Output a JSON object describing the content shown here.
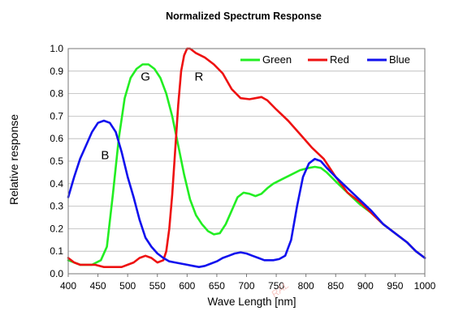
{
  "chart_data": {
    "type": "line",
    "title": "Normalized Spectrum Response",
    "xlabel": "Wave Length [nm]",
    "ylabel": "Relative response",
    "xlim": [
      400,
      1000
    ],
    "ylim": [
      0.0,
      1.0
    ],
    "x_ticks": [
      400,
      450,
      500,
      550,
      600,
      650,
      700,
      750,
      800,
      850,
      900,
      950,
      1000
    ],
    "x_tick_labels": [
      "400",
      "450",
      "500",
      "550",
      "600",
      "650",
      "700",
      "750",
      "800",
      "850",
      "900",
      "950",
      "1000"
    ],
    "y_ticks": [
      0.0,
      0.1,
      0.2,
      0.3,
      0.4,
      0.5,
      0.6,
      0.7,
      0.8,
      0.9,
      1.0
    ],
    "y_tick_labels": [
      "0.0",
      "0.1",
      "0.2",
      "0.3",
      "0.4",
      "0.5",
      "0.6",
      "0.7",
      "0.8",
      "0.9",
      "1.0"
    ],
    "grid": "horizontal",
    "legend_position": "top-right",
    "series": [
      {
        "name": "Green",
        "color": "#22ee22",
        "points": [
          [
            400,
            0.06
          ],
          [
            420,
            0.04
          ],
          [
            440,
            0.04
          ],
          [
            455,
            0.06
          ],
          [
            465,
            0.12
          ],
          [
            475,
            0.35
          ],
          [
            485,
            0.6
          ],
          [
            495,
            0.78
          ],
          [
            505,
            0.87
          ],
          [
            515,
            0.91
          ],
          [
            525,
            0.93
          ],
          [
            535,
            0.93
          ],
          [
            545,
            0.91
          ],
          [
            555,
            0.87
          ],
          [
            565,
            0.8
          ],
          [
            575,
            0.7
          ],
          [
            585,
            0.57
          ],
          [
            595,
            0.44
          ],
          [
            605,
            0.33
          ],
          [
            615,
            0.26
          ],
          [
            625,
            0.22
          ],
          [
            635,
            0.19
          ],
          [
            645,
            0.175
          ],
          [
            655,
            0.18
          ],
          [
            665,
            0.22
          ],
          [
            675,
            0.28
          ],
          [
            685,
            0.34
          ],
          [
            695,
            0.36
          ],
          [
            705,
            0.355
          ],
          [
            715,
            0.345
          ],
          [
            725,
            0.355
          ],
          [
            735,
            0.38
          ],
          [
            745,
            0.4
          ],
          [
            760,
            0.42
          ],
          [
            775,
            0.44
          ],
          [
            790,
            0.46
          ],
          [
            805,
            0.47
          ],
          [
            815,
            0.475
          ],
          [
            825,
            0.47
          ],
          [
            835,
            0.45
          ],
          [
            850,
            0.41
          ],
          [
            870,
            0.36
          ],
          [
            890,
            0.31
          ],
          [
            910,
            0.27
          ],
          [
            930,
            0.22
          ],
          [
            950,
            0.18
          ],
          [
            970,
            0.14
          ],
          [
            985,
            0.1
          ],
          [
            1000,
            0.07
          ]
        ]
      },
      {
        "name": "Red",
        "color": "#ee1111",
        "points": [
          [
            400,
            0.07
          ],
          [
            410,
            0.05
          ],
          [
            420,
            0.04
          ],
          [
            430,
            0.04
          ],
          [
            445,
            0.04
          ],
          [
            460,
            0.03
          ],
          [
            475,
            0.03
          ],
          [
            490,
            0.03
          ],
          [
            500,
            0.04
          ],
          [
            510,
            0.05
          ],
          [
            520,
            0.07
          ],
          [
            530,
            0.08
          ],
          [
            540,
            0.07
          ],
          [
            550,
            0.05
          ],
          [
            560,
            0.06
          ],
          [
            565,
            0.1
          ],
          [
            570,
            0.2
          ],
          [
            575,
            0.35
          ],
          [
            580,
            0.55
          ],
          [
            585,
            0.75
          ],
          [
            590,
            0.9
          ],
          [
            595,
            0.97
          ],
          [
            600,
            1.0
          ],
          [
            605,
            1.0
          ],
          [
            615,
            0.98
          ],
          [
            630,
            0.96
          ],
          [
            645,
            0.93
          ],
          [
            660,
            0.89
          ],
          [
            675,
            0.82
          ],
          [
            690,
            0.78
          ],
          [
            705,
            0.775
          ],
          [
            715,
            0.78
          ],
          [
            725,
            0.785
          ],
          [
            735,
            0.77
          ],
          [
            750,
            0.73
          ],
          [
            770,
            0.68
          ],
          [
            790,
            0.62
          ],
          [
            810,
            0.56
          ],
          [
            830,
            0.51
          ],
          [
            850,
            0.43
          ],
          [
            870,
            0.36
          ],
          [
            890,
            0.32
          ],
          [
            910,
            0.27
          ],
          [
            930,
            0.22
          ],
          [
            950,
            0.18
          ],
          [
            970,
            0.14
          ],
          [
            985,
            0.1
          ],
          [
            1000,
            0.07
          ]
        ]
      },
      {
        "name": "Blue",
        "color": "#1111ee",
        "points": [
          [
            400,
            0.34
          ],
          [
            410,
            0.43
          ],
          [
            420,
            0.51
          ],
          [
            430,
            0.57
          ],
          [
            440,
            0.63
          ],
          [
            450,
            0.67
          ],
          [
            460,
            0.68
          ],
          [
            470,
            0.67
          ],
          [
            480,
            0.63
          ],
          [
            490,
            0.54
          ],
          [
            500,
            0.43
          ],
          [
            510,
            0.34
          ],
          [
            520,
            0.24
          ],
          [
            530,
            0.16
          ],
          [
            540,
            0.12
          ],
          [
            550,
            0.09
          ],
          [
            560,
            0.07
          ],
          [
            570,
            0.055
          ],
          [
            580,
            0.05
          ],
          [
            590,
            0.045
          ],
          [
            600,
            0.04
          ],
          [
            610,
            0.035
          ],
          [
            620,
            0.03
          ],
          [
            630,
            0.035
          ],
          [
            640,
            0.045
          ],
          [
            650,
            0.055
          ],
          [
            660,
            0.07
          ],
          [
            670,
            0.08
          ],
          [
            680,
            0.09
          ],
          [
            690,
            0.095
          ],
          [
            700,
            0.09
          ],
          [
            710,
            0.08
          ],
          [
            720,
            0.07
          ],
          [
            730,
            0.06
          ],
          [
            745,
            0.06
          ],
          [
            755,
            0.065
          ],
          [
            765,
            0.08
          ],
          [
            775,
            0.15
          ],
          [
            785,
            0.3
          ],
          [
            795,
            0.43
          ],
          [
            805,
            0.49
          ],
          [
            815,
            0.51
          ],
          [
            825,
            0.5
          ],
          [
            835,
            0.47
          ],
          [
            850,
            0.43
          ],
          [
            870,
            0.38
          ],
          [
            890,
            0.33
          ],
          [
            910,
            0.28
          ],
          [
            930,
            0.22
          ],
          [
            950,
            0.18
          ],
          [
            970,
            0.14
          ],
          [
            985,
            0.1
          ],
          [
            1000,
            0.07
          ]
        ]
      }
    ],
    "annotations": [
      {
        "text": "G",
        "x": 530,
        "y": 0.88
      },
      {
        "text": "R",
        "x": 620,
        "y": 0.88
      },
      {
        "text": "B",
        "x": 462,
        "y": 0.53
      }
    ],
    "watermark": "RAL"
  }
}
